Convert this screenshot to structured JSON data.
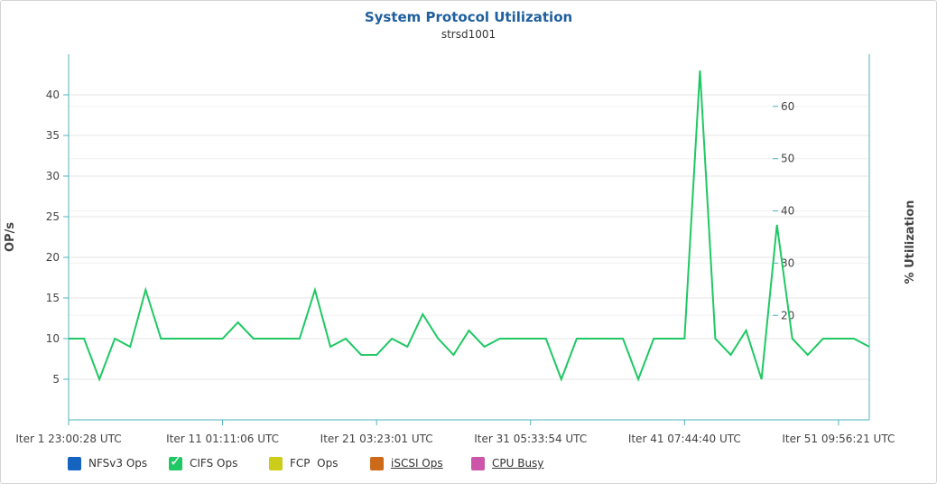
{
  "chart_data": {
    "type": "line",
    "title": "System Protocol Utilization",
    "subtitle": "strsd1001",
    "ylabel": "OP/s",
    "y2label": "% Utilization",
    "ylim": [
      0,
      45
    ],
    "yticks": [
      5,
      10,
      15,
      20,
      25,
      30,
      35,
      40
    ],
    "y2lim": [
      0,
      70
    ],
    "y2ticks": [
      20,
      30,
      40,
      50,
      60
    ],
    "xlim": [
      1,
      53
    ],
    "xticks": [
      {
        "x": 1,
        "label": "Iter 1 23:00:28 UTC"
      },
      {
        "x": 11,
        "label": "Iter 11 01:11:06 UTC"
      },
      {
        "x": 21,
        "label": "Iter 21 03:23:01 UTC"
      },
      {
        "x": 31,
        "label": "Iter 31 05:33:54 UTC"
      },
      {
        "x": 41,
        "label": "Iter 41 07:44:40 UTC"
      },
      {
        "x": 51,
        "label": "Iter 51 09:56:21 UTC"
      }
    ],
    "grid": true,
    "legend_position": "bottom-left",
    "series": [
      {
        "name": "CIFS Ops",
        "color": "#1fc864",
        "values": [
          10,
          10,
          5,
          10,
          9,
          16,
          10,
          10,
          10,
          10,
          10,
          12,
          10,
          10,
          10,
          10,
          16,
          9,
          10,
          8,
          8,
          10,
          9,
          13,
          10,
          8,
          11,
          9,
          10,
          10,
          10,
          10,
          5,
          10,
          10,
          10,
          10,
          5,
          10,
          10,
          10,
          43,
          10,
          8,
          11,
          5,
          24,
          10,
          8,
          10,
          10,
          10,
          9
        ]
      }
    ]
  },
  "legend": [
    {
      "label": "NFSv3 Ops",
      "color": "#1565c0",
      "checked": false,
      "link": false
    },
    {
      "label": "CIFS Ops",
      "color": "#1fc864",
      "checked": true,
      "link": false
    },
    {
      "label": "FCP  Ops",
      "color": "#cccc1a",
      "checked": false,
      "link": false
    },
    {
      "label": "iSCSI Ops",
      "color": "#cc6a1a",
      "checked": false,
      "link": true
    },
    {
      "label": "CPU Busy",
      "color": "#cc55aa",
      "checked": false,
      "link": true
    }
  ]
}
